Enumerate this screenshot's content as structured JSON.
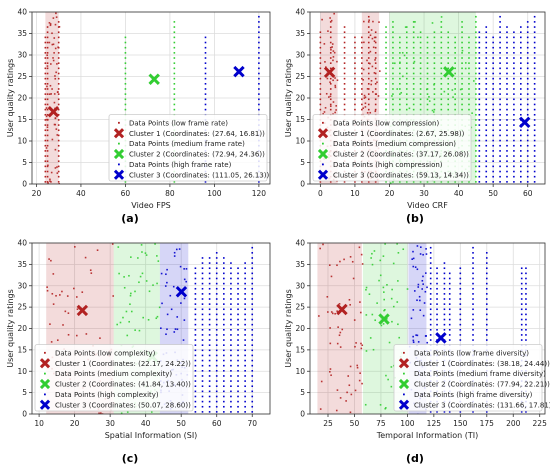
{
  "chart_data": [
    {
      "type": "scatter",
      "panel_label": "(a)",
      "xlabel": "Video FPS",
      "ylabel": "User quality ratings",
      "xlim": [
        18,
        125
      ],
      "ylim": [
        0,
        40
      ],
      "xticks": [
        20,
        40,
        60,
        80,
        100,
        120
      ],
      "yticks": [
        0,
        5,
        10,
        15,
        20,
        25,
        30,
        35,
        40
      ],
      "grid": true,
      "legend": "bottom-right",
      "series": [
        {
          "name": "Data Points (low frame rate)",
          "color": "#b22222",
          "stripes": [
            [
              24,
              30
            ]
          ],
          "lines": [
            24,
            25,
            30
          ]
        },
        {
          "name": "Data Points (medium frame rate)",
          "color": "#32cd32",
          "stripes": [],
          "lines": [
            60,
            82
          ]
        },
        {
          "name": "Data Points (high frame rate)",
          "color": "#0000cc",
          "stripes": [],
          "lines": [
            96,
            120
          ]
        }
      ],
      "clusters": [
        {
          "label": "Cluster 1 (Coordinates: (27.64, 16.81))",
          "x": 27.64,
          "y": 16.81,
          "color": "#b22222"
        },
        {
          "label": "Cluster 2 (Coordinates: (72.94, 24.36))",
          "x": 72.94,
          "y": 24.36,
          "color": "#32cd32"
        },
        {
          "label": "Cluster 3 (Coordinates: (111.05, 26.13))",
          "x": 111.05,
          "y": 26.13,
          "color": "#0000cc"
        }
      ]
    },
    {
      "type": "scatter",
      "panel_label": "(b)",
      "xlabel": "Video CRF",
      "ylabel": "User quality ratings",
      "xlim": [
        -3,
        65
      ],
      "ylim": [
        0,
        40
      ],
      "xticks": [
        0,
        10,
        20,
        30,
        40,
        50,
        60
      ],
      "yticks": [
        0,
        5,
        10,
        15,
        20,
        25,
        30,
        35,
        40
      ],
      "grid": true,
      "legend": "bottom-left",
      "series": [
        {
          "name": "Data Points (low compression)",
          "color": "#b22222",
          "stripes": [
            [
              0,
              5
            ],
            [
              12,
              17
            ]
          ],
          "lines": [
            0,
            3,
            7,
            10,
            12,
            14,
            16
          ]
        },
        {
          "name": "Data Points (medium compression)",
          "color": "#32cd32",
          "stripes": [
            [
              20,
              45
            ]
          ],
          "lines": [
            19,
            21,
            23,
            25,
            27,
            29,
            31,
            33,
            35,
            37,
            39,
            41,
            43,
            45
          ]
        },
        {
          "name": "Data Points (high compression)",
          "color": "#0000cc",
          "stripes": [],
          "lines": [
            46,
            48,
            50,
            52,
            54,
            56,
            58,
            60,
            62
          ]
        }
      ],
      "clusters": [
        {
          "label": "Cluster 1 (Coordinates: (2.67, 25.98))",
          "x": 2.67,
          "y": 25.98,
          "color": "#b22222"
        },
        {
          "label": "Cluster 2 (Coordinates: (37.17, 26.08))",
          "x": 37.17,
          "y": 26.08,
          "color": "#32cd32"
        },
        {
          "label": "Cluster 3 (Coordinates: (59.13, 14.34))",
          "x": 59.13,
          "y": 14.34,
          "color": "#0000cc"
        }
      ]
    },
    {
      "type": "scatter",
      "panel_label": "(c)",
      "xlabel": "Spatial Information (SI)",
      "ylabel": "User quality ratings",
      "xlim": [
        8,
        75
      ],
      "ylim": [
        0,
        40
      ],
      "xticks": [
        10,
        20,
        30,
        40,
        50,
        60,
        70
      ],
      "yticks": [
        0,
        5,
        10,
        15,
        20,
        25,
        30,
        35,
        40
      ],
      "grid": true,
      "legend": "bottom-left",
      "series": [
        {
          "name": "Data Points (low complexity)",
          "color": "#b22222",
          "stripes": [
            [
              12,
              31
            ]
          ],
          "lines": []
        },
        {
          "name": "Data Points (medium complexity)",
          "color": "#32cd32",
          "stripes": [
            [
              31,
              44
            ]
          ],
          "lines": []
        },
        {
          "name": "Data Points (high complexity)",
          "color": "#0000cc",
          "stripes": [
            [
              44,
              52
            ]
          ],
          "lines": [
            54,
            56,
            58,
            60,
            62,
            64,
            66,
            68,
            70
          ]
        }
      ],
      "clusters": [
        {
          "label": "Cluster 1 (Coordinates: (22.17, 24.22))",
          "x": 22.17,
          "y": 24.22,
          "color": "#b22222"
        },
        {
          "label": "Cluster 2 (Coordinates: (41.84, 13.40))",
          "x": 41.84,
          "y": 13.4,
          "color": "#32cd32"
        },
        {
          "label": "Cluster 3 (Coordinates: (50.07, 28.60))",
          "x": 50.07,
          "y": 28.6,
          "color": "#0000cc"
        }
      ]
    },
    {
      "type": "scatter",
      "panel_label": "(d)",
      "xlabel": "Temporal Information (TI)",
      "ylabel": "User quality ratings",
      "xlim": [
        8,
        230
      ],
      "ylim": [
        0,
        40
      ],
      "xticks": [
        25,
        50,
        75,
        100,
        125,
        150,
        175,
        200,
        225
      ],
      "yticks": [
        0,
        5,
        10,
        15,
        20,
        25,
        30,
        35,
        40
      ],
      "grid": true,
      "legend": "bottom-right",
      "series": [
        {
          "name": "Data Points (low frame diversity)",
          "color": "#b22222",
          "stripes": [
            [
              15,
              57
            ]
          ],
          "lines": []
        },
        {
          "name": "Data Points (medium frame diversity)",
          "color": "#32cd32",
          "stripes": [
            [
              58,
              100
            ]
          ],
          "lines": []
        },
        {
          "name": "Data Points (high frame diversity)",
          "color": "#0000cc",
          "stripes": [
            [
              101,
              118
            ]
          ],
          "lines": [
            122,
            128,
            135,
            140,
            150,
            162,
            175,
            208,
            212
          ]
        }
      ],
      "clusters": [
        {
          "label": "Cluster 1 (Coordinates: (38.18, 24.44))",
          "x": 38.18,
          "y": 24.44,
          "color": "#b22222"
        },
        {
          "label": "Cluster 2 (Coordinates: (77.94, 22.21))",
          "x": 77.94,
          "y": 22.21,
          "color": "#32cd32"
        },
        {
          "label": "Cluster 3 (Coordinates: (131.66, 17.81))",
          "x": 131.66,
          "y": 17.81,
          "color": "#0000cc"
        }
      ]
    }
  ]
}
